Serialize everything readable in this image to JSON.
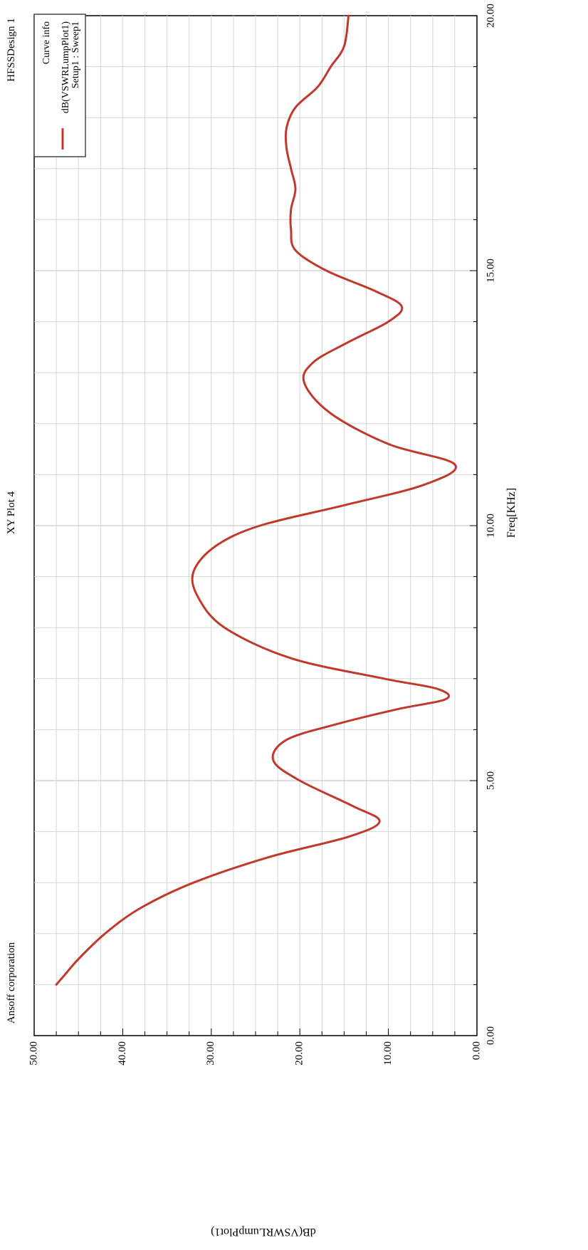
{
  "header": {
    "company": "Ansoff corporation",
    "plot_name": "XY Plot 4",
    "design_name": "HFSSDesign 1"
  },
  "legend": {
    "title": "Curve info",
    "entry_line1": "dB(VSWRLumpPlot1)",
    "entry_line2": "Setup1 : Sweep1"
  },
  "colors": {
    "curve": "#c0392b",
    "grid": "#d6d6d6",
    "axis": "#000000",
    "background": "#ffffff"
  },
  "chart_data": {
    "type": "line",
    "title": "XY Plot 4",
    "xlabel": "Freq[KHz]",
    "ylabel": "dB(VSWRLumpPlot1)",
    "xlim": [
      0,
      20
    ],
    "ylim": [
      0,
      50
    ],
    "x_ticks": [
      "0.00",
      "5.00",
      "10.00",
      "15.00",
      "20.00"
    ],
    "y_ticks": [
      "0.00",
      "10.00",
      "20.00",
      "30.00",
      "40.00",
      "50.00"
    ],
    "grid": true,
    "legend_position": "top-right",
    "series": [
      {
        "name": "dB(VSWRLumpPlot1) Setup1 : Sweep1",
        "x": [
          1.0,
          1.2,
          1.5,
          2.0,
          2.5,
          3.0,
          3.5,
          3.9,
          4.2,
          4.5,
          5.0,
          5.4,
          5.8,
          6.1,
          6.4,
          6.6,
          6.8,
          7.0,
          7.4,
          8.0,
          8.6,
          9.1,
          9.6,
          10.0,
          10.4,
          10.8,
          11.2,
          11.6,
          12.2,
          12.8,
          13.2,
          13.6,
          14.0,
          14.3,
          14.6,
          15.0,
          15.4,
          15.8,
          16.2,
          16.6,
          17.0,
          17.4,
          17.8,
          18.2,
          18.6,
          19.0,
          19.4,
          20.0
        ],
        "y": [
          47.5,
          46.5,
          45.0,
          42.0,
          38.0,
          32.0,
          23.5,
          14.5,
          11.0,
          14.0,
          20.0,
          23.0,
          21.5,
          16.0,
          9.0,
          3.5,
          4.5,
          10.5,
          21.0,
          28.5,
          31.5,
          32.0,
          29.5,
          24.5,
          15.0,
          6.0,
          2.5,
          10.0,
          16.5,
          19.5,
          18.5,
          14.5,
          10.0,
          8.5,
          11.5,
          17.0,
          20.5,
          21.0,
          21.0,
          20.5,
          21.0,
          21.5,
          21.5,
          20.5,
          18.0,
          16.5,
          15.0,
          14.5
        ]
      }
    ]
  }
}
